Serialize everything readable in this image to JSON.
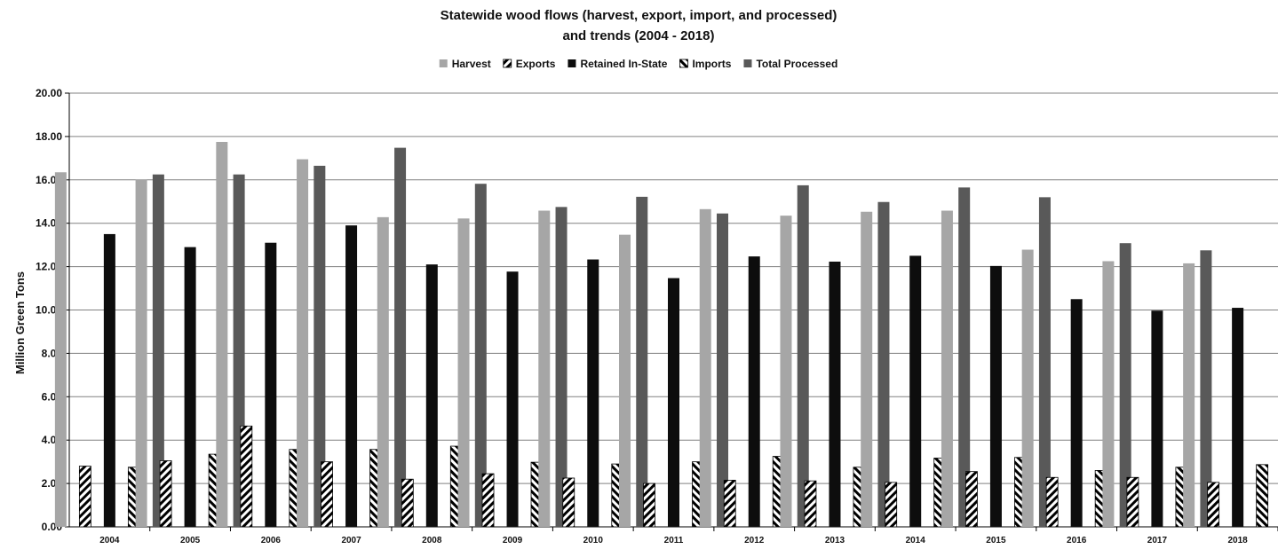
{
  "chart_data": {
    "type": "bar",
    "title_line1": "Statewide wood flows (harvest, export, import, and processed)",
    "title_line2": "and trends (2004 - 2018)",
    "ylabel": "Million Green Tons",
    "xlabel": "",
    "ylim": [
      0,
      20
    ],
    "y_ticks": [
      "0.00",
      "2.00",
      "4.00",
      "6.00",
      "8.00",
      "10.00",
      "12.00",
      "14.00",
      "16.00",
      "18.00",
      "20.00"
    ],
    "grid": "horizontal",
    "legend_position": "top",
    "categories": [
      "2004",
      "2005",
      "2006",
      "2007",
      "2008",
      "2009",
      "2010",
      "2011",
      "2012",
      "2013",
      "2014",
      "2015",
      "2016",
      "2017",
      "2018"
    ],
    "series": [
      {
        "name": "Harvest",
        "style": "solid",
        "color": "#a6a6a6",
        "values": [
          16.35,
          16.02,
          17.75,
          16.95,
          14.28,
          14.22,
          14.58,
          13.47,
          14.65,
          14.35,
          14.53,
          14.58,
          12.78,
          12.25,
          12.15
        ]
      },
      {
        "name": "Exports",
        "style": "hatch-back",
        "color": "#000000",
        "values": [
          2.8,
          3.05,
          4.65,
          3.0,
          2.2,
          2.45,
          2.25,
          2.0,
          2.15,
          2.12,
          2.05,
          2.55,
          2.28,
          2.28,
          2.05
        ]
      },
      {
        "name": "Retained In-State",
        "style": "solid",
        "color": "#0d0d0d",
        "values": [
          13.5,
          12.9,
          13.1,
          13.9,
          12.1,
          11.77,
          12.33,
          11.47,
          12.47,
          12.23,
          12.5,
          12.03,
          10.5,
          9.97,
          10.1
        ]
      },
      {
        "name": "Imports",
        "style": "hatch-forward",
        "color": "#000000",
        "values": [
          2.75,
          3.35,
          3.57,
          3.57,
          3.72,
          2.98,
          2.9,
          3.0,
          3.25,
          2.75,
          3.17,
          3.2,
          2.6,
          2.75,
          2.87
        ]
      },
      {
        "name": "Total Processed",
        "style": "solid",
        "color": "#595959",
        "values": [
          16.25,
          16.25,
          16.65,
          17.48,
          15.82,
          14.75,
          15.22,
          14.45,
          15.75,
          14.98,
          15.65,
          15.2,
          13.08,
          12.75,
          12.98
        ]
      }
    ]
  }
}
